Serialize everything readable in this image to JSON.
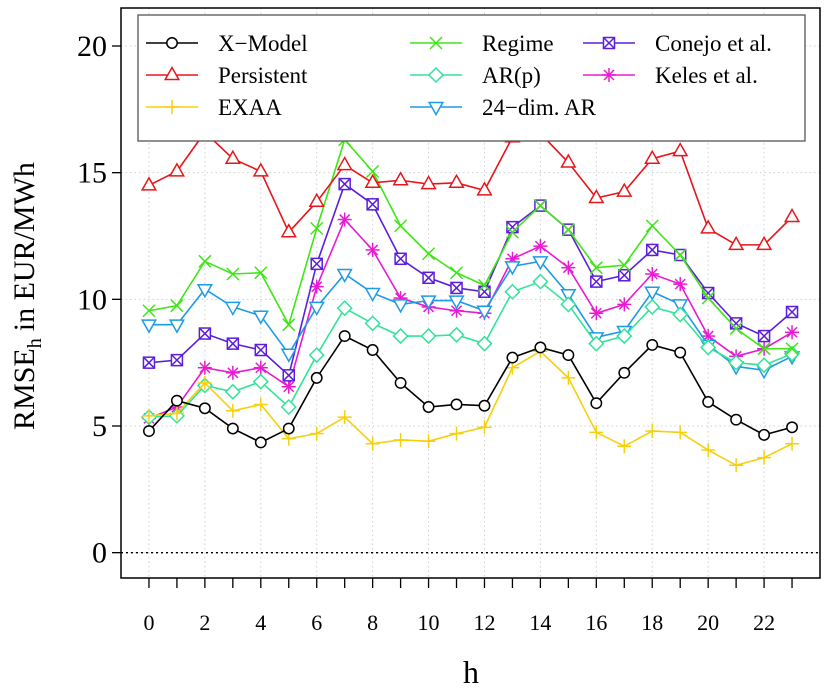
{
  "chart_data": {
    "type": "line",
    "title": "",
    "xlabel": "h",
    "ylabel": "RMSE",
    "ylabel_subscript": "h",
    "ylabel_unit": "in EUR/MWh",
    "x": [
      0,
      1,
      2,
      3,
      4,
      5,
      6,
      7,
      8,
      9,
      10,
      11,
      12,
      13,
      14,
      15,
      16,
      17,
      18,
      19,
      20,
      21,
      22,
      23
    ],
    "xlim": [
      -1,
      24
    ],
    "ylim": [
      -1,
      21.5
    ],
    "x_ticks": [
      0,
      2,
      4,
      6,
      8,
      10,
      12,
      14,
      16,
      18,
      20,
      22
    ],
    "x_tick_labels": [
      "0",
      "2",
      "4",
      "6",
      "8",
      "10",
      "12",
      "14",
      "16",
      "18",
      "20",
      "22"
    ],
    "y_ticks": [
      0,
      5,
      10,
      15,
      20
    ],
    "y_tick_labels": [
      "0",
      "5",
      "10",
      "15",
      "20"
    ],
    "grid": true,
    "zero_line": true,
    "legend_position": "top",
    "series": [
      {
        "name": "X−Model",
        "color": "#000000",
        "marker": "circle",
        "values": [
          4.8,
          6.0,
          5.7,
          4.9,
          4.35,
          4.9,
          6.9,
          8.55,
          8.0,
          6.7,
          5.75,
          5.85,
          5.8,
          7.7,
          8.1,
          7.8,
          5.9,
          7.1,
          8.2,
          7.9,
          5.95,
          5.25,
          4.65,
          4.95
        ]
      },
      {
        "name": "Persistent",
        "color": "#e8161b",
        "marker": "triangle-up",
        "values": [
          14.5,
          15.05,
          16.6,
          15.55,
          15.05,
          12.65,
          13.85,
          15.3,
          14.6,
          14.7,
          14.55,
          14.6,
          14.3,
          16.4,
          16.55,
          15.4,
          14.0,
          14.25,
          15.55,
          15.85,
          12.8,
          12.15,
          12.15,
          13.25
        ]
      },
      {
        "name": "EXAA",
        "color": "#f5d00f",
        "marker": "plus",
        "values": [
          5.4,
          5.5,
          6.7,
          5.6,
          5.85,
          4.5,
          4.7,
          5.35,
          4.3,
          4.45,
          4.4,
          4.7,
          4.95,
          7.3,
          7.95,
          6.9,
          4.75,
          4.2,
          4.8,
          4.75,
          4.05,
          3.45,
          3.75,
          4.3
        ]
      },
      {
        "name": "Regime",
        "color": "#3ee616",
        "marker": "cross",
        "values": [
          9.55,
          9.75,
          11.5,
          11.0,
          11.05,
          9.0,
          12.8,
          16.3,
          15.05,
          12.9,
          11.8,
          11.05,
          10.55,
          12.65,
          13.7,
          12.75,
          11.25,
          11.35,
          12.9,
          11.75,
          10.05,
          8.85,
          8.05,
          8.05
        ]
      },
      {
        "name": "AR(p)",
        "color": "#33e39a",
        "marker": "diamond",
        "values": [
          5.35,
          5.4,
          6.6,
          6.35,
          6.75,
          5.75,
          7.8,
          9.65,
          9.05,
          8.55,
          8.55,
          8.6,
          8.25,
          10.3,
          10.7,
          9.8,
          8.25,
          8.55,
          9.7,
          9.4,
          8.1,
          7.5,
          7.4,
          7.85
        ]
      },
      {
        "name": "24−dim. AR",
        "color": "#1e9be6",
        "marker": "triangle-down",
        "values": [
          9.0,
          9.0,
          10.4,
          9.7,
          9.35,
          7.85,
          9.7,
          11.0,
          10.25,
          9.8,
          9.95,
          9.95,
          9.55,
          11.3,
          11.5,
          10.2,
          8.5,
          8.75,
          10.3,
          9.8,
          8.2,
          7.35,
          7.2,
          7.75
        ]
      },
      {
        "name": "Conejo et al.",
        "color": "#5b1fdc",
        "marker": "boxed-cross",
        "values": [
          7.5,
          7.6,
          8.65,
          8.25,
          8.0,
          7.0,
          11.4,
          14.55,
          13.75,
          11.6,
          10.85,
          10.45,
          10.3,
          12.85,
          13.7,
          12.75,
          10.7,
          10.95,
          11.95,
          11.75,
          10.25,
          9.05,
          8.55,
          9.5
        ]
      },
      {
        "name": "Keles et al.",
        "color": "#e81bd2",
        "marker": "asterisk",
        "values": [
          5.3,
          5.75,
          7.3,
          7.1,
          7.3,
          6.55,
          10.5,
          13.15,
          11.95,
          10.05,
          9.7,
          9.55,
          9.45,
          11.6,
          12.1,
          11.25,
          9.45,
          9.8,
          11.0,
          10.6,
          8.55,
          7.75,
          8.05,
          8.7
        ]
      }
    ]
  }
}
